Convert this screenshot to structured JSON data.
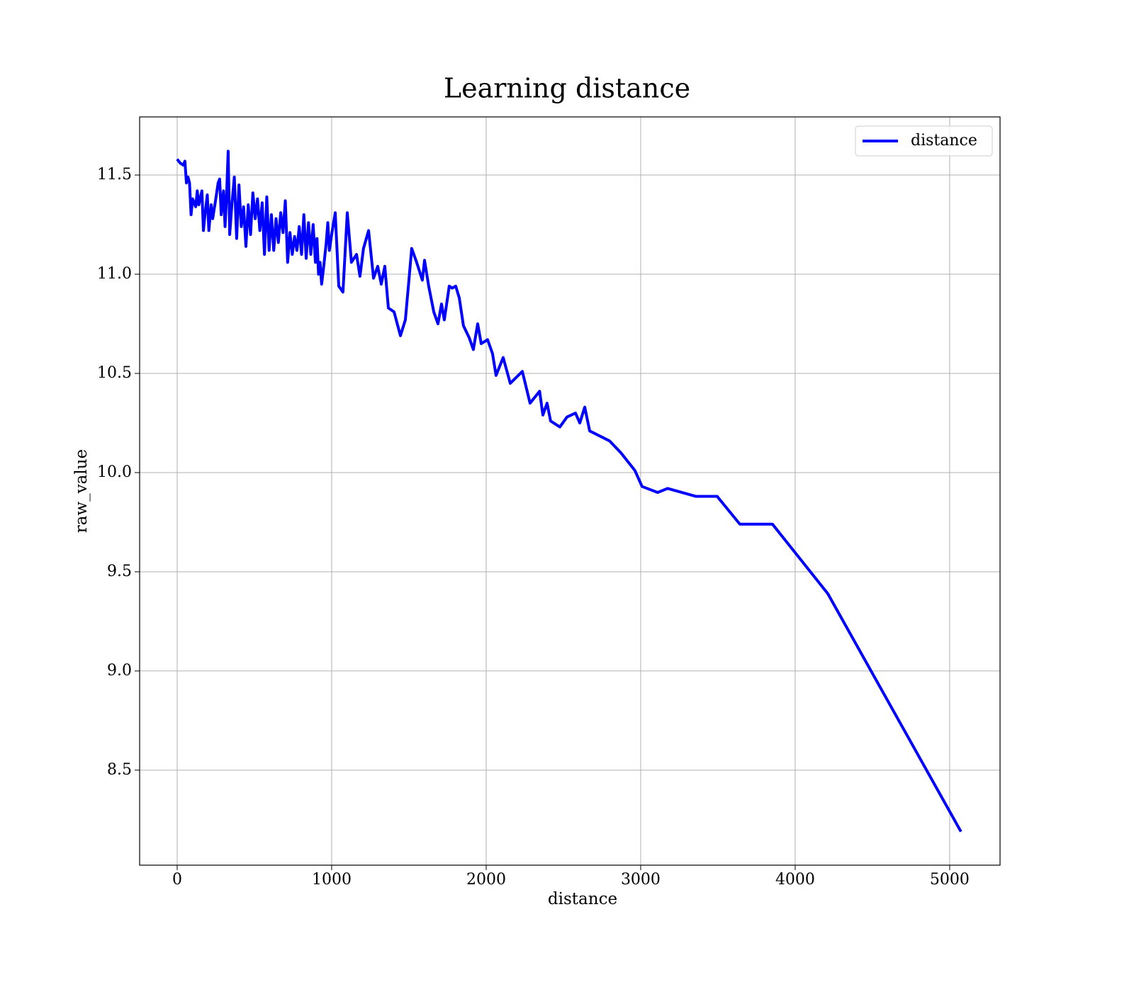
{
  "chart_data": {
    "type": "line",
    "title": "Learning distance",
    "x_label": "distance",
    "y_label": "raw_value",
    "x": [
      0,
      20,
      40,
      50,
      60,
      70,
      80,
      90,
      100,
      120,
      130,
      140,
      160,
      170,
      180,
      195,
      205,
      220,
      230,
      250,
      265,
      275,
      285,
      300,
      310,
      320,
      330,
      340,
      355,
      370,
      385,
      400,
      415,
      430,
      445,
      460,
      475,
      490,
      505,
      520,
      535,
      550,
      565,
      580,
      595,
      610,
      625,
      640,
      655,
      670,
      685,
      700,
      715,
      730,
      745,
      760,
      775,
      790,
      805,
      820,
      835,
      850,
      865,
      880,
      895,
      905,
      915,
      925,
      935,
      950,
      965,
      975,
      985,
      1000,
      1023,
      1046,
      1073,
      1101,
      1128,
      1161,
      1183,
      1206,
      1239,
      1271,
      1298,
      1321,
      1344,
      1367,
      1404,
      1445,
      1477,
      1500,
      1518,
      1550,
      1587,
      1601,
      1628,
      1661,
      1688,
      1711,
      1729,
      1761,
      1780,
      1803,
      1826,
      1853,
      1890,
      1917,
      1945,
      1968,
      2009,
      2041,
      2064,
      2110,
      2156,
      2234,
      2284,
      2346,
      2367,
      2394,
      2417,
      2477,
      2523,
      2578,
      2606,
      2638,
      2670,
      2798,
      2872,
      2963,
      3009,
      3110,
      3174,
      3358,
      3495,
      3642,
      3853,
      4211,
      5073
    ],
    "series": [
      {
        "name": "distance",
        "color": "#0000ff",
        "values": [
          11.58,
          11.56,
          11.55,
          11.57,
          11.46,
          11.49,
          11.46,
          11.3,
          11.38,
          11.34,
          11.42,
          11.35,
          11.42,
          11.22,
          11.3,
          11.4,
          11.22,
          11.35,
          11.28,
          11.38,
          11.46,
          11.48,
          11.3,
          11.42,
          11.24,
          11.4,
          11.62,
          11.2,
          11.36,
          11.49,
          11.18,
          11.45,
          11.24,
          11.34,
          11.14,
          11.35,
          11.2,
          11.41,
          11.28,
          11.38,
          11.22,
          11.36,
          11.1,
          11.39,
          11.12,
          11.3,
          11.12,
          11.28,
          11.16,
          11.31,
          11.21,
          11.37,
          11.06,
          11.21,
          11.1,
          11.19,
          11.12,
          11.24,
          11.1,
          11.3,
          11.08,
          11.26,
          11.1,
          11.25,
          11.06,
          11.18,
          11.0,
          11.06,
          10.95,
          11.05,
          11.16,
          11.26,
          11.12,
          11.2,
          11.31,
          10.94,
          10.91,
          11.31,
          11.06,
          11.1,
          10.99,
          11.13,
          11.22,
          10.98,
          11.04,
          10.95,
          11.04,
          10.83,
          10.81,
          10.69,
          10.77,
          10.97,
          11.13,
          11.06,
          10.97,
          11.07,
          10.94,
          10.81,
          10.75,
          10.85,
          10.77,
          10.94,
          10.93,
          10.94,
          10.88,
          10.74,
          10.68,
          10.62,
          10.75,
          10.65,
          10.67,
          10.6,
          10.49,
          10.58,
          10.45,
          10.51,
          10.35,
          10.41,
          10.29,
          10.35,
          10.26,
          10.23,
          10.28,
          10.3,
          10.25,
          10.33,
          10.21,
          10.16,
          10.1,
          10.01,
          9.93,
          9.9,
          9.92,
          9.88,
          9.88,
          9.74,
          9.74,
          9.39,
          8.19
        ]
      }
    ],
    "xlim": [
      -243,
      5326
    ],
    "ylim": [
      8.021,
      11.793
    ],
    "xticks": [
      0,
      1000,
      2000,
      3000,
      4000,
      5000
    ],
    "yticks": [
      8.5,
      {
        "value": 9.0,
        "label": "9.0"
      },
      9.5,
      {
        "value": 10.0,
        "label": "10.0"
      },
      10.5,
      {
        "value": 11.0,
        "label": "11.0"
      },
      11.5
    ],
    "grid": true,
    "legend": "upper right"
  }
}
